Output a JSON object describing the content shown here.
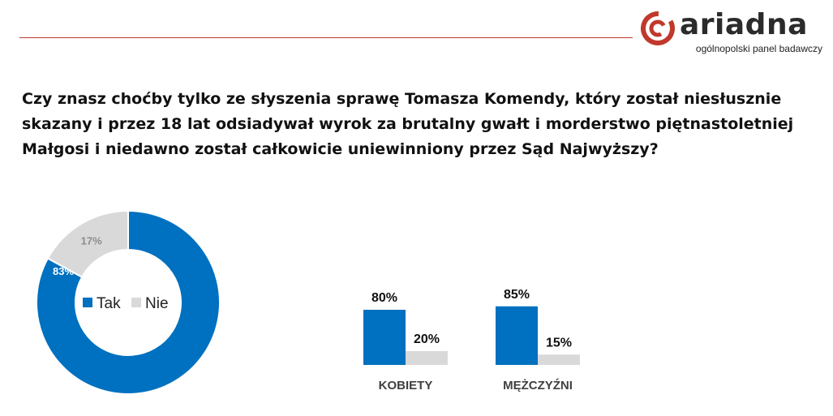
{
  "brand": {
    "name": "ariadna",
    "tagline": "ogólnopolski panel badawczy",
    "accent_color": "#c0392b"
  },
  "question": "Czy znasz choćby tylko ze słyszenia sprawę Tomasza Komendy, który został niesłusznie skazany i przez 18 lat odsiadywał wyrok za brutalny gwałt i morderstwo piętnastoletniej Małgosi i niedawno został całkowicie uniewinniony przez Sąd Najwyższy?",
  "chart_data": [
    {
      "type": "pie",
      "donut": true,
      "categories": [
        "Tak",
        "Nie"
      ],
      "values": [
        83,
        17
      ],
      "data_labels": [
        "83%",
        "17%"
      ],
      "colors": [
        "#0070c0",
        "#d9d9d9"
      ],
      "label_colors": [
        "#ffffff",
        "#8c8c8c"
      ],
      "legend": {
        "position": "center",
        "entries": [
          "Tak",
          "Nie"
        ]
      }
    },
    {
      "type": "bar",
      "categories": [
        "KOBIETY",
        "MĘŻCZYŹNI"
      ],
      "series": [
        {
          "name": "Tak",
          "values": [
            80,
            85
          ],
          "data_labels": [
            "80%",
            "85%"
          ],
          "color": "#0070c0"
        },
        {
          "name": "Nie",
          "values": [
            20,
            15
          ],
          "data_labels": [
            "20%",
            "15%"
          ],
          "color": "#d9d9d9"
        }
      ],
      "ylim": [
        0,
        100
      ],
      "grid": false
    }
  ]
}
